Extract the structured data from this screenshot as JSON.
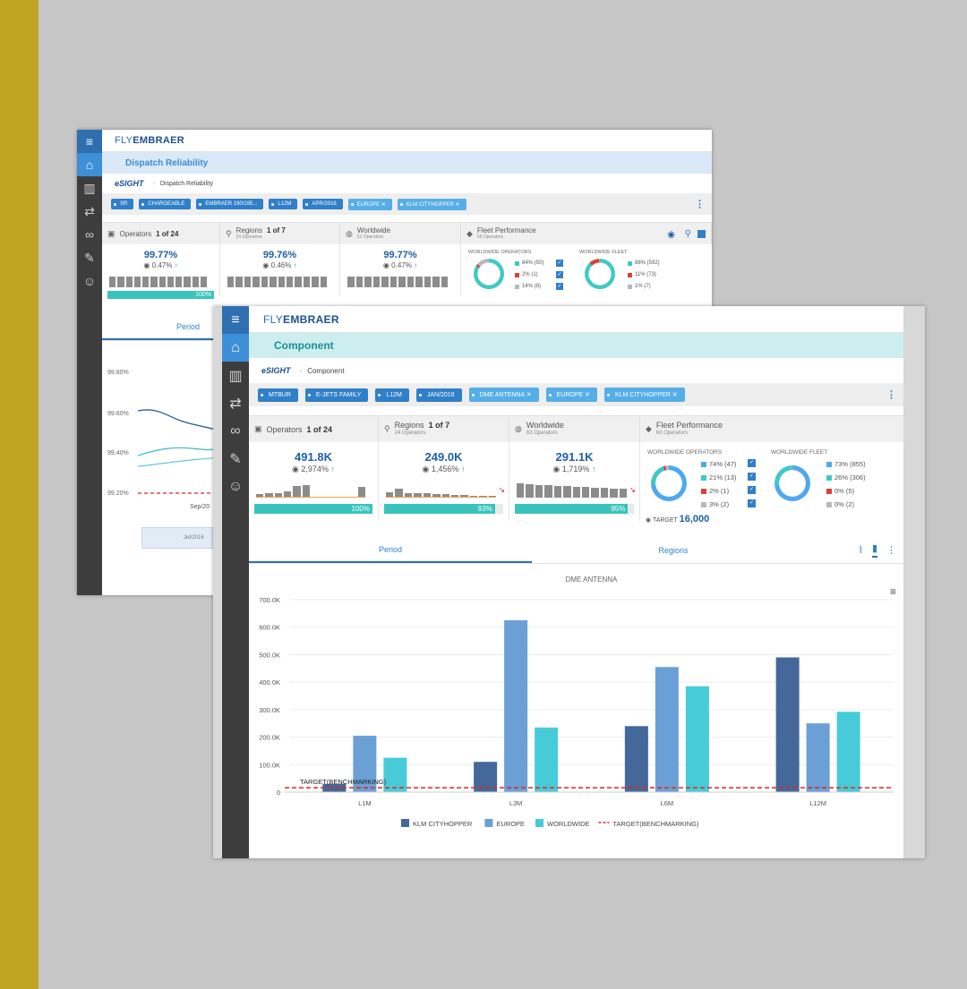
{
  "back_window": {
    "logo_fly": "FLY",
    "logo_brand": "EMBRAER",
    "page_title": "Dispatch Reliability",
    "breadcrumb_brand": "eSIGHT",
    "breadcrumb_page": "Dispatch Reliability",
    "filters": [
      "SR",
      "CHARGEABLE",
      "EMBRAER 190/195...",
      "L12M",
      "APR/2016",
      "EUROPE ✕",
      "KLM CITYHOPPER ✕"
    ],
    "kpi_headers": {
      "operators": "Operators",
      "operators_count": "1 of 24",
      "regions": "Regions",
      "regions_count": "1 of 7",
      "regions_sub": "24 Operators",
      "worldwide": "Worldwide",
      "worldwide_sub": "51 Operators",
      "fleet": "Fleet Performance",
      "fleet_sub": "59 Operators"
    },
    "kpis": [
      {
        "value": "99.77%",
        "change": "0.47%",
        "progress": 100,
        "progress_label": "100%"
      },
      {
        "value": "99.76%",
        "change": "0.46%"
      },
      {
        "value": "99.77%",
        "change": "0.47%"
      }
    ],
    "fleet": {
      "operators_title": "WORLDWIDE OPERATORS",
      "fleet_title": "WORLDWIDE FLEET",
      "operators_legend": [
        "84% (50)",
        "2% (1)",
        "14% (8)"
      ],
      "fleet_legend": [
        "88% (592)",
        "11% (73)",
        "1% (7)"
      ]
    },
    "tab_period": "Period",
    "y_ticks": [
      "99.80%",
      "99.60%",
      "99.40%",
      "99.20%"
    ],
    "x_tick": "Sep/20",
    "nav_label": "Jul/2016"
  },
  "front_window": {
    "logo_fly": "FLY",
    "logo_brand": "EMBRAER",
    "page_title": "Component",
    "breadcrumb_brand": "eSIGHT",
    "breadcrumb_page": "Component",
    "filters": [
      "MTBUR",
      "E-JETS FAMILY",
      "L12M",
      "JAN/2016",
      "DME ANTENNA ✕",
      "EUROPE ✕",
      "KLM CITYHOPPER ✕"
    ],
    "kpi_headers": {
      "operators": "Operators",
      "operators_count": "1 of 24",
      "regions": "Regions",
      "regions_count": "1 of 7",
      "regions_sub": "24 Operators",
      "worldwide": "Worldwide",
      "worldwide_sub": "63 Operators",
      "fleet": "Fleet Performance",
      "fleet_sub": "63 Operators"
    },
    "kpis": [
      {
        "value": "491.8K",
        "change": "2,974%",
        "progress": 100,
        "progress_label": "100%"
      },
      {
        "value": "249.0K",
        "change": "1,456%",
        "progress": 93,
        "progress_label": "93%"
      },
      {
        "value": "291.1K",
        "change": "1,719%",
        "progress": 95,
        "progress_label": "95%"
      }
    ],
    "fleet": {
      "operators_title": "WORLDWIDE OPERATORS",
      "fleet_title": "WORLDWIDE FLEET",
      "operators_legend": [
        "74% (47)",
        "21% (13)",
        "2% (1)",
        "3% (2)"
      ],
      "fleet_legend": [
        "73% (855)",
        "26% (306)",
        "0% (5)",
        "0% (2)"
      ],
      "target_label": "TARGET",
      "target_value": "16,000"
    },
    "tab_period": "Period",
    "tab_regions": "Regions"
  },
  "chart_data": {
    "type": "bar",
    "title": "DME ANTENNA",
    "categories": [
      "L1M",
      "L3M",
      "L6M",
      "L12M"
    ],
    "series": [
      {
        "name": "KLM CITYHOPPER",
        "color": "#44689a",
        "values": [
          30000,
          110000,
          240000,
          490000
        ]
      },
      {
        "name": "EUROPE",
        "color": "#6aa0d6",
        "values": [
          205000,
          625000,
          455000,
          250000
        ]
      },
      {
        "name": "WORLDWIDE",
        "color": "#47cbd8",
        "values": [
          125000,
          235000,
          385000,
          292000
        ]
      }
    ],
    "target": {
      "name": "TARGET(BENCHMARKING)",
      "label": "TARGET(BENCHMARKING)",
      "value": 16000,
      "color": "#e02525"
    },
    "ylim": [
      0,
      700000
    ],
    "y_ticks": [
      0,
      100000,
      200000,
      300000,
      400000,
      500000,
      600000,
      700000
    ],
    "y_tick_labels": [
      "0",
      "100.0K",
      "200.0K",
      "300.0K",
      "400.0K",
      "500.0K",
      "600.0K",
      "700.0K"
    ],
    "legend_position": "bottom",
    "grid": true
  }
}
